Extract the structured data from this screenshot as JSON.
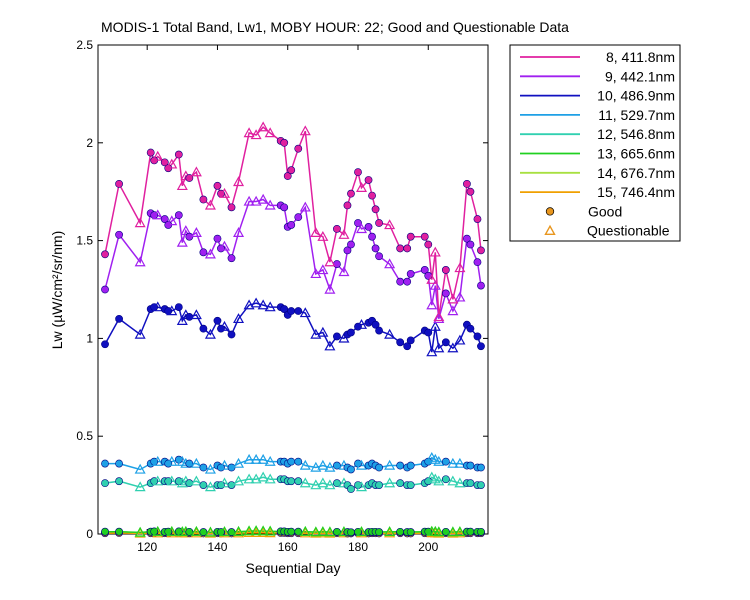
{
  "chart_data": {
    "type": "line",
    "title": "MODIS-1 Total Band,  Lw1, MOBY HOUR: 22;  Good and Questionable Data",
    "xlabel": "Sequential Day",
    "ylabel": "Lw (µW/cm²/sr/nm)",
    "xlim": [
      106,
      217
    ],
    "ylim": [
      0,
      2.5
    ],
    "xticks": [
      120,
      140,
      160,
      180,
      200
    ],
    "yticks": [
      0,
      0.5,
      1,
      1.5,
      2,
      2.5
    ],
    "xtick_labels": [
      "120",
      "140",
      "160",
      "180",
      "200"
    ],
    "ytick_labels": [
      "0",
      "0.5",
      "1",
      "1.5",
      "2",
      "2.5"
    ],
    "grid": false,
    "legend_position": "outside-top-right",
    "marker_legend": [
      {
        "label": "Good",
        "marker": "circle",
        "color": "#e8961e"
      },
      {
        "label": "Questionable",
        "marker": "triangle",
        "color": "#e8961e"
      }
    ],
    "x": [
      108,
      112,
      118,
      121,
      122,
      123,
      125,
      126,
      127,
      129,
      130,
      131,
      132,
      134,
      136,
      138,
      140,
      141,
      142,
      144,
      146,
      149,
      151,
      153,
      155,
      158,
      159,
      160,
      161,
      163,
      165,
      168,
      170,
      172,
      174,
      176,
      177,
      178,
      180,
      181,
      183,
      184,
      185,
      186,
      189,
      192,
      194,
      195,
      199,
      200,
      201,
      202,
      203,
      205,
      207,
      209,
      211,
      212,
      214,
      215
    ],
    "series": [
      {
        "name": "8, 411.8nm",
        "color": "#e0209f",
        "values": [
          1.43,
          1.79,
          1.59,
          1.95,
          1.91,
          1.93,
          1.9,
          1.87,
          1.89,
          1.94,
          1.78,
          1.83,
          1.82,
          1.85,
          1.71,
          1.68,
          1.78,
          1.74,
          1.74,
          1.67,
          1.8,
          2.05,
          2.04,
          2.08,
          2.05,
          2.01,
          2.0,
          1.83,
          1.86,
          1.97,
          2.06,
          1.54,
          1.52,
          1.39,
          1.56,
          1.53,
          1.68,
          1.74,
          1.85,
          1.77,
          1.81,
          1.73,
          1.66,
          1.59,
          1.58,
          1.46,
          1.46,
          1.52,
          1.52,
          1.48,
          1.3,
          1.44,
          1.11,
          1.35,
          1.2,
          1.36,
          1.79,
          1.75,
          1.61,
          1.45
        ],
        "quality": "mixed"
      },
      {
        "name": "9, 442.1nm",
        "color": "#a020f0",
        "values": [
          1.25,
          1.53,
          1.39,
          1.64,
          1.63,
          1.63,
          1.61,
          1.58,
          1.6,
          1.63,
          1.49,
          1.55,
          1.52,
          1.54,
          1.44,
          1.43,
          1.51,
          1.46,
          1.47,
          1.41,
          1.54,
          1.7,
          1.7,
          1.71,
          1.68,
          1.68,
          1.67,
          1.57,
          1.58,
          1.62,
          1.67,
          1.33,
          1.35,
          1.25,
          1.38,
          1.34,
          1.45,
          1.48,
          1.59,
          1.56,
          1.57,
          1.52,
          1.46,
          1.42,
          1.38,
          1.29,
          1.29,
          1.33,
          1.35,
          1.32,
          1.17,
          1.27,
          1.1,
          1.23,
          1.14,
          1.21,
          1.51,
          1.48,
          1.39,
          1.27
        ],
        "quality": "mixed"
      },
      {
        "name": "10, 486.9nm",
        "color": "#1010c0",
        "values": [
          0.97,
          1.1,
          1.02,
          1.15,
          1.16,
          1.16,
          1.15,
          1.14,
          1.14,
          1.16,
          1.09,
          1.12,
          1.11,
          1.12,
          1.05,
          1.02,
          1.09,
          1.05,
          1.06,
          1.02,
          1.1,
          1.17,
          1.18,
          1.17,
          1.16,
          1.16,
          1.15,
          1.12,
          1.14,
          1.14,
          1.13,
          1.02,
          1.03,
          0.96,
          1.01,
          1.0,
          1.02,
          1.03,
          1.06,
          1.07,
          1.08,
          1.09,
          1.07,
          1.04,
          1.02,
          0.98,
          0.96,
          0.99,
          1.04,
          1.03,
          0.93,
          1.06,
          0.95,
          0.98,
          0.95,
          0.99,
          1.07,
          1.05,
          1.01,
          0.96
        ],
        "quality": "mixed"
      },
      {
        "name": "11, 529.7nm",
        "color": "#1ea0e6",
        "values": [
          0.36,
          0.36,
          0.33,
          0.36,
          0.37,
          0.37,
          0.37,
          0.36,
          0.37,
          0.38,
          0.37,
          0.36,
          0.36,
          0.36,
          0.34,
          0.33,
          0.35,
          0.34,
          0.35,
          0.34,
          0.36,
          0.38,
          0.38,
          0.38,
          0.37,
          0.37,
          0.37,
          0.36,
          0.37,
          0.37,
          0.35,
          0.34,
          0.35,
          0.34,
          0.35,
          0.35,
          0.34,
          0.33,
          0.36,
          0.35,
          0.35,
          0.36,
          0.35,
          0.34,
          0.35,
          0.35,
          0.34,
          0.35,
          0.36,
          0.37,
          0.39,
          0.38,
          0.37,
          0.37,
          0.36,
          0.36,
          0.35,
          0.35,
          0.34,
          0.34
        ],
        "quality": "mixed"
      },
      {
        "name": "12, 546.8nm",
        "color": "#30d0b0",
        "values": [
          0.26,
          0.27,
          0.24,
          0.26,
          0.27,
          0.27,
          0.27,
          0.27,
          0.27,
          0.27,
          0.26,
          0.27,
          0.26,
          0.27,
          0.25,
          0.24,
          0.25,
          0.25,
          0.26,
          0.25,
          0.27,
          0.28,
          0.28,
          0.29,
          0.28,
          0.28,
          0.28,
          0.27,
          0.27,
          0.27,
          0.26,
          0.25,
          0.26,
          0.25,
          0.26,
          0.26,
          0.25,
          0.23,
          0.25,
          0.24,
          0.25,
          0.26,
          0.25,
          0.25,
          0.26,
          0.26,
          0.25,
          0.25,
          0.26,
          0.27,
          0.29,
          0.28,
          0.27,
          0.28,
          0.27,
          0.26,
          0.26,
          0.26,
          0.25,
          0.25
        ],
        "quality": "mixed"
      },
      {
        "name": "13, 665.6nm",
        "color": "#20d020",
        "values": [
          0.012,
          0.012,
          0.008,
          0.012,
          0.013,
          0.012,
          0.011,
          0.012,
          0.012,
          0.013,
          0.011,
          0.012,
          0.011,
          0.012,
          0.01,
          0.009,
          0.011,
          0.01,
          0.011,
          0.01,
          0.012,
          0.015,
          0.016,
          0.015,
          0.014,
          0.013,
          0.013,
          0.011,
          0.012,
          0.012,
          0.012,
          0.01,
          0.011,
          0.01,
          0.011,
          0.011,
          0.01,
          0.009,
          0.011,
          0.011,
          0.01,
          0.011,
          0.011,
          0.01,
          0.011,
          0.011,
          0.01,
          0.01,
          0.012,
          0.012,
          0.013,
          0.012,
          0.01,
          0.011,
          0.01,
          0.011,
          0.012,
          0.012,
          0.011,
          0.011
        ]
      },
      {
        "name": "14, 676.7nm",
        "color": "#a8e040",
        "values": [
          0.01,
          0.011,
          0.007,
          0.011,
          0.012,
          0.011,
          0.01,
          0.011,
          0.011,
          0.012,
          0.01,
          0.011,
          0.01,
          0.011,
          0.009,
          0.008,
          0.01,
          0.009,
          0.01,
          0.009,
          0.011,
          0.014,
          0.015,
          0.014,
          0.013,
          0.012,
          0.012,
          0.01,
          0.011,
          0.011,
          0.011,
          0.009,
          0.01,
          0.009,
          0.01,
          0.01,
          0.009,
          0.008,
          0.01,
          0.01,
          0.009,
          0.01,
          0.01,
          0.009,
          0.01,
          0.01,
          0.009,
          0.009,
          0.011,
          0.011,
          0.012,
          0.011,
          0.009,
          0.01,
          0.009,
          0.01,
          0.011,
          0.011,
          0.01,
          0.01
        ]
      },
      {
        "name": "15, 746.4nm",
        "color": "#f0a000",
        "values": [
          0.004,
          0.005,
          0.003,
          0.004,
          0.005,
          0.004,
          0.004,
          0.004,
          0.004,
          0.005,
          0.004,
          0.004,
          0.004,
          0.004,
          0.003,
          0.003,
          0.004,
          0.003,
          0.004,
          0.003,
          0.004,
          0.006,
          0.006,
          0.006,
          0.005,
          0.005,
          0.005,
          0.004,
          0.004,
          0.004,
          0.004,
          0.003,
          0.004,
          0.003,
          0.004,
          0.004,
          0.003,
          0.003,
          0.004,
          0.004,
          0.003,
          0.004,
          0.004,
          0.003,
          0.004,
          0.004,
          0.003,
          0.003,
          0.004,
          0.004,
          0.005,
          0.004,
          0.003,
          0.004,
          0.003,
          0.004,
          0.004,
          0.004,
          0.004,
          0.004
        ]
      }
    ],
    "questionable_x": [
      118,
      123,
      127,
      130,
      131,
      134,
      138,
      142,
      146,
      149,
      151,
      153,
      155,
      165,
      168,
      170,
      172,
      176,
      181,
      189,
      201,
      202,
      203,
      207,
      209
    ],
    "marker_style": {
      "good_fill": "series color",
      "edge": "#000080"
    }
  }
}
